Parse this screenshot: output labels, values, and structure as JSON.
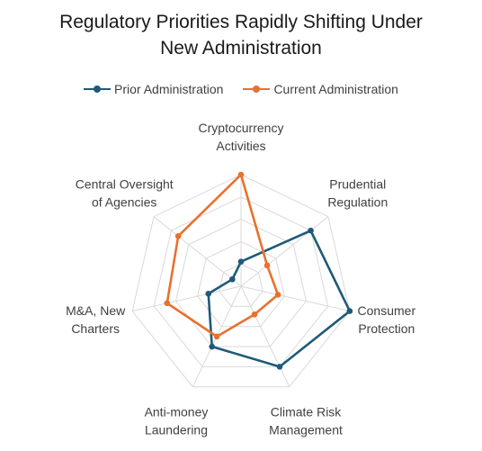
{
  "chart_data": {
    "type": "radar",
    "title": [
      "Regulatory Priorities Rapidly Shifting Under",
      "New Administration"
    ],
    "categories": [
      [
        "Cryptocurrency",
        "Activities"
      ],
      [
        "Prudential",
        "Regulation"
      ],
      [
        "Consumer",
        "Protection"
      ],
      [
        "Climate Risk",
        "Management"
      ],
      [
        "Anti-money",
        "Laundering"
      ],
      [
        "M&A, New",
        "Charters"
      ],
      [
        "Central Oversight",
        "of Agencies"
      ]
    ],
    "rlim": [
      0,
      5
    ],
    "grid_rings": 5,
    "grid": true,
    "legend_position": "top",
    "series": [
      {
        "name": "Prior Administration",
        "color": "#1f5a78",
        "values": [
          1.1,
          4.0,
          5.0,
          4.0,
          3.0,
          1.5,
          0.5
        ]
      },
      {
        "name": "Current Administration",
        "color": "#e8712f",
        "values": [
          5.0,
          1.5,
          1.7,
          1.4,
          2.5,
          3.4,
          3.6
        ]
      }
    ]
  }
}
